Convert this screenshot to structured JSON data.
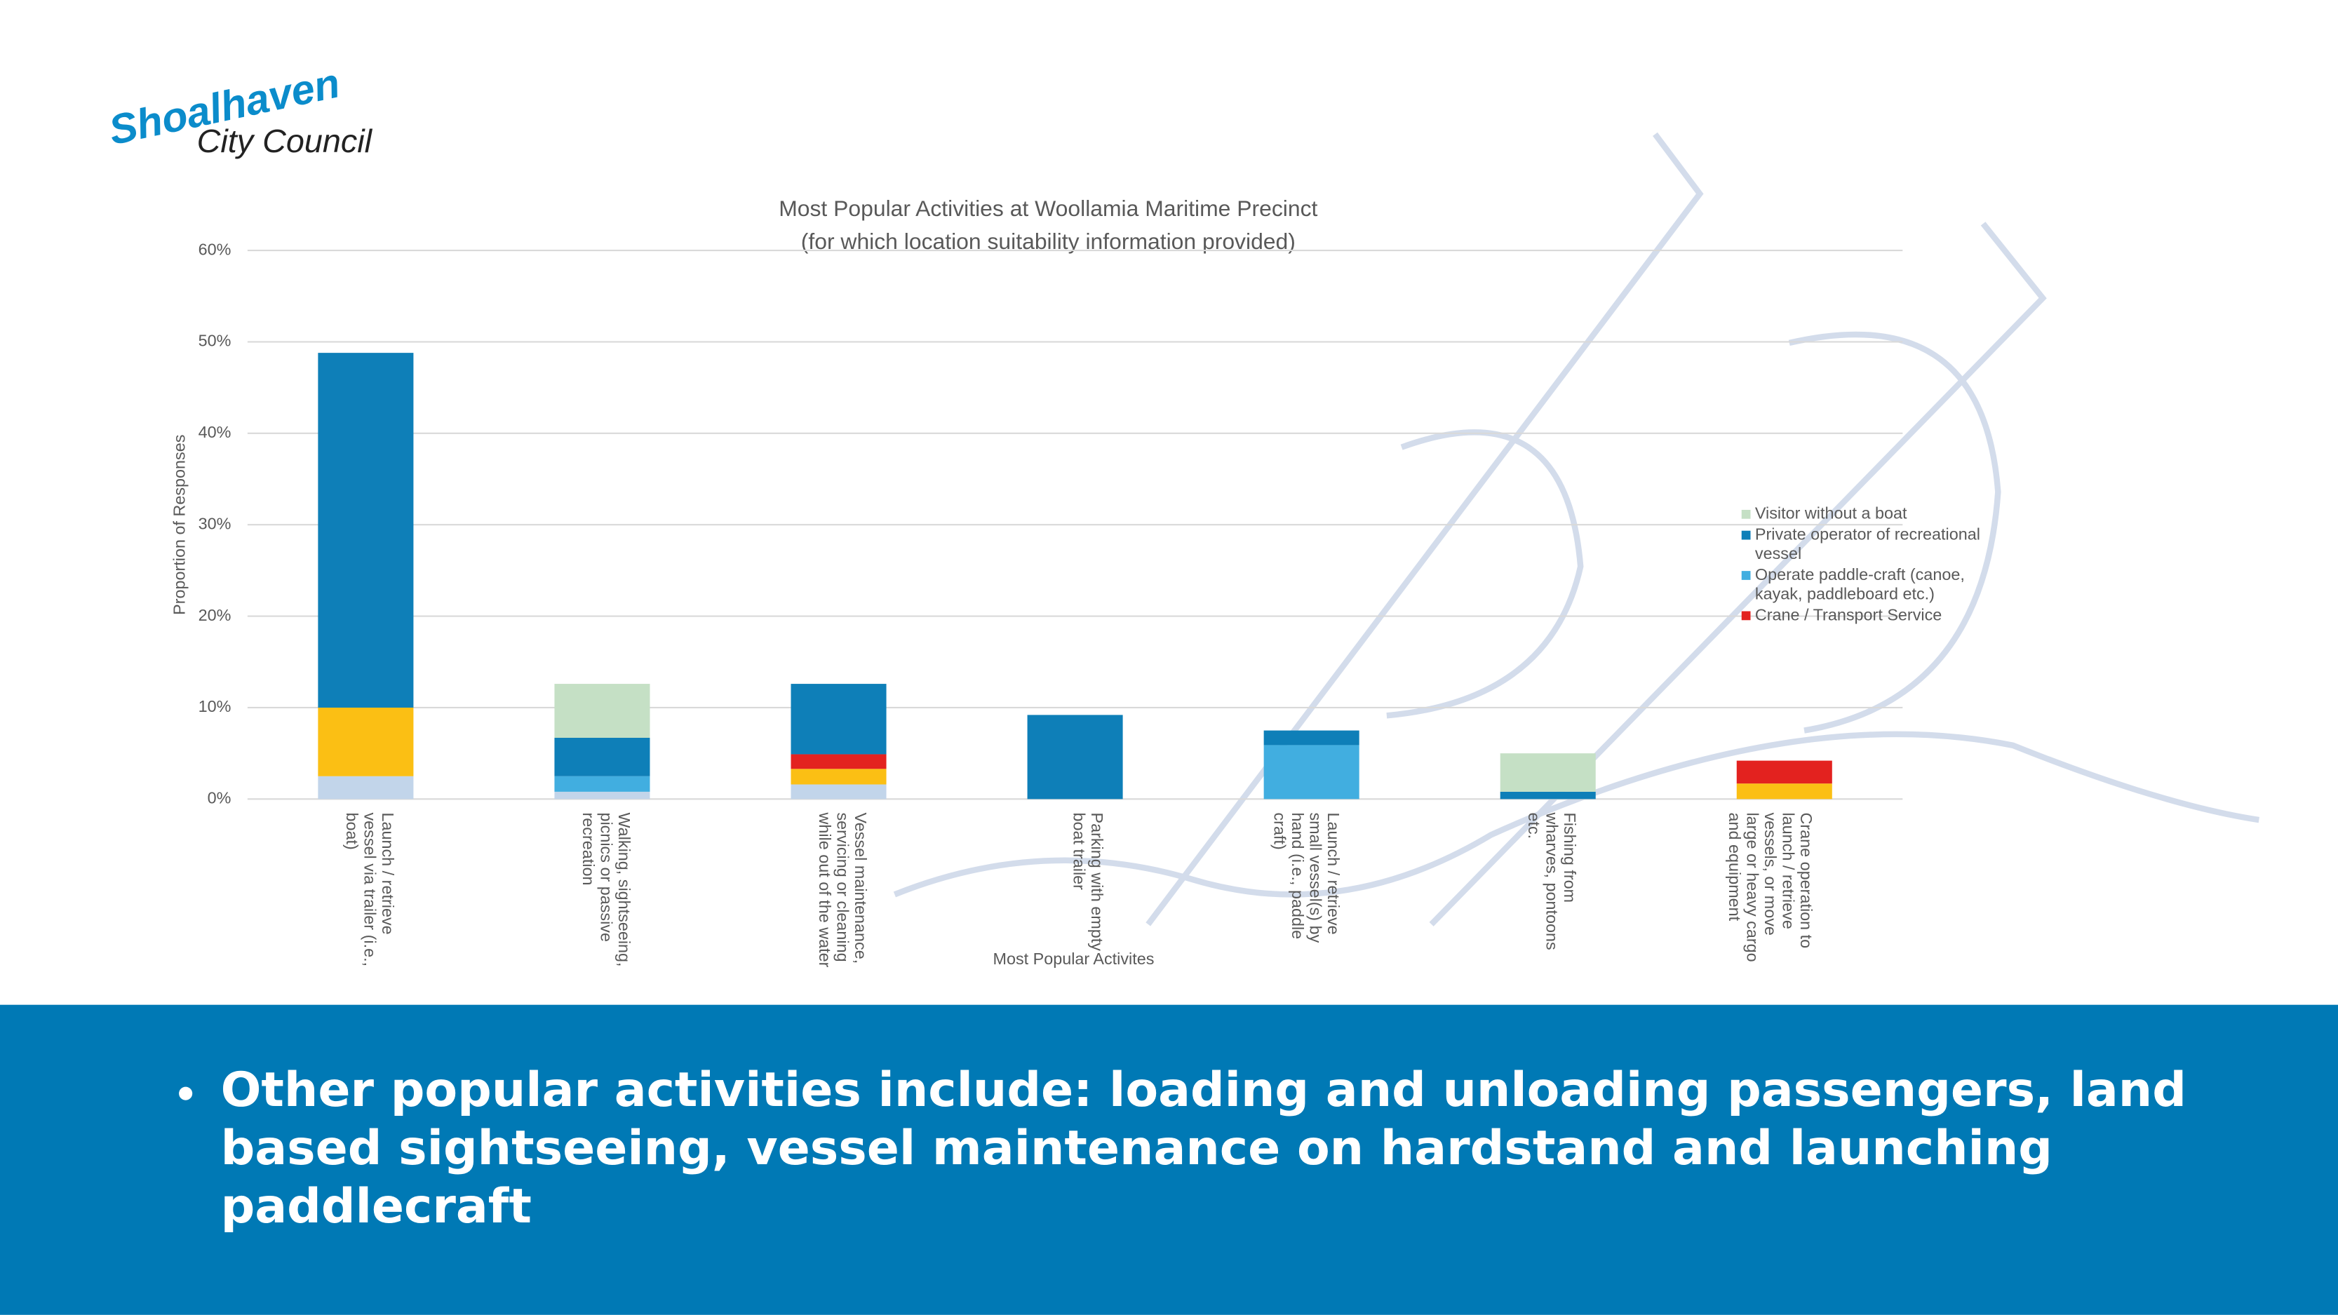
{
  "logo": {
    "name": "Shoalhaven",
    "subtitle": "City Council"
  },
  "chart_data": {
    "type": "stacked-bar",
    "title": "Most Popular Activities at Woollamia Maritime Precinct",
    "subtitle": "(for which location suitability information provided)",
    "x_label": "Most Popular Activites",
    "y_label": "Proportion of Responses",
    "categories": [
      "Launch / retrieve vessel via trailer (i.e., boat)",
      "Walking, sightseeing, picnics or passive recreation",
      "Vessel maintenance, servicing or cleaning while out of the water",
      "Parking with empty boat trailer",
      "Launch / retrieve small vessel(s) by hand (i.e., paddle craft)",
      "Fishing from wharves, pontoons etc.",
      "Crane operation to launch / retrieve vessels, or move large or heavy cargo and equipment"
    ],
    "series": [
      {
        "color": "#c2d5ea",
        "values": [
          2.5,
          0.8,
          1.6,
          0,
          0,
          0,
          0
        ]
      },
      {
        "color": "#fbbf14",
        "values": [
          7.5,
          0,
          1.7,
          0,
          0,
          0,
          1.7
        ]
      },
      {
        "name": "Crane / Transport Service",
        "color": "#e3221f",
        "values": [
          0,
          0,
          1.6,
          0,
          0,
          0,
          2.5
        ]
      },
      {
        "name": "Operate paddle-craft (canoe, kayak, paddleboard etc.)",
        "color": "#41aee0",
        "values": [
          0,
          1.7,
          0,
          0,
          5.9,
          0,
          0
        ]
      },
      {
        "name": "Private operator of recreational vessel",
        "color": "#0e7fb8",
        "values": [
          38.8,
          4.2,
          7.7,
          9.2,
          1.6,
          0.8,
          0
        ]
      },
      {
        "name": "Visitor without a boat",
        "color": "#c5e0c5",
        "values": [
          0,
          5.9,
          0,
          0,
          0,
          4.2,
          0
        ]
      }
    ],
    "ylim": [
      0,
      60
    ],
    "yticks": [
      {
        "value": 0,
        "label": "0%"
      },
      {
        "value": 10,
        "label": "10%"
      },
      {
        "value": 20,
        "label": "20%"
      },
      {
        "value": 30,
        "label": "30%"
      },
      {
        "value": 40,
        "label": "40%"
      },
      {
        "value": 50,
        "label": "50%"
      },
      {
        "value": 60,
        "label": "60%"
      }
    ],
    "grid": true
  },
  "bullets": [
    "Other popular activities include: loading and unloading passengers, land based sightseeing, vessel maintenance on hardstand and launching paddlecraft"
  ]
}
